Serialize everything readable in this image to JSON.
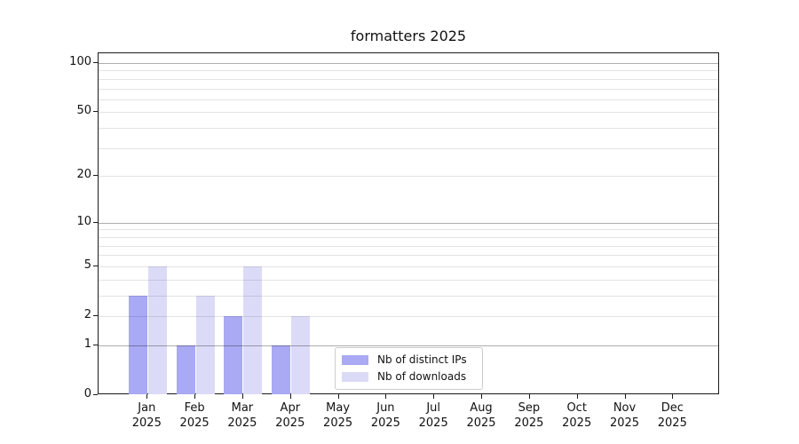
{
  "chart_data": {
    "type": "bar",
    "title": "formatters 2025",
    "categories": [
      "Jan 2025",
      "Feb 2025",
      "Mar 2025",
      "Apr 2025",
      "May 2025",
      "Jun 2025",
      "Jul 2025",
      "Aug 2025",
      "Sep 2025",
      "Oct 2025",
      "Nov 2025",
      "Dec 2025"
    ],
    "category_lines": [
      [
        "Jan",
        "2025"
      ],
      [
        "Feb",
        "2025"
      ],
      [
        "Mar",
        "2025"
      ],
      [
        "Apr",
        "2025"
      ],
      [
        "May",
        "2025"
      ],
      [
        "Jun",
        "2025"
      ],
      [
        "Jul",
        "2025"
      ],
      [
        "Aug",
        "2025"
      ],
      [
        "Sep",
        "2025"
      ],
      [
        "Oct",
        "2025"
      ],
      [
        "Nov",
        "2025"
      ],
      [
        "Dec",
        "2025"
      ]
    ],
    "series": [
      {
        "name": "Nb of distinct IPs",
        "color": "#a9a9f4",
        "values": [
          3,
          1,
          2,
          1,
          0,
          0,
          0,
          0,
          0,
          0,
          0,
          0
        ]
      },
      {
        "name": "Nb of downloads",
        "color": "#dbdbf8",
        "values": [
          5,
          3,
          5,
          2,
          0,
          0,
          0,
          0,
          0,
          0,
          0,
          0
        ]
      }
    ],
    "y_axis": {
      "scale": "log1p",
      "tick_labels": [
        "0",
        "1",
        "2",
        "5",
        "10",
        "20",
        "50",
        "100"
      ],
      "tick_values": [
        0,
        1,
        2,
        5,
        10,
        20,
        50,
        100
      ],
      "minor_grid_values": [
        2,
        3,
        4,
        5,
        6,
        7,
        8,
        9,
        20,
        30,
        40,
        50,
        60,
        70,
        80,
        90
      ],
      "major_grid_values": [
        1,
        10,
        100
      ],
      "ylim": [
        0,
        117
      ]
    },
    "xlabel": "",
    "ylabel": "",
    "grid": "on",
    "legend_position": "inside-bottom-center"
  },
  "colors": {
    "background": "#ffffff",
    "axis_line": "#1a1a1a",
    "major_grid": "#aeaeae",
    "minor_grid": "#e4e4e4",
    "legend_border": "#cccccc",
    "text": "#111111"
  }
}
